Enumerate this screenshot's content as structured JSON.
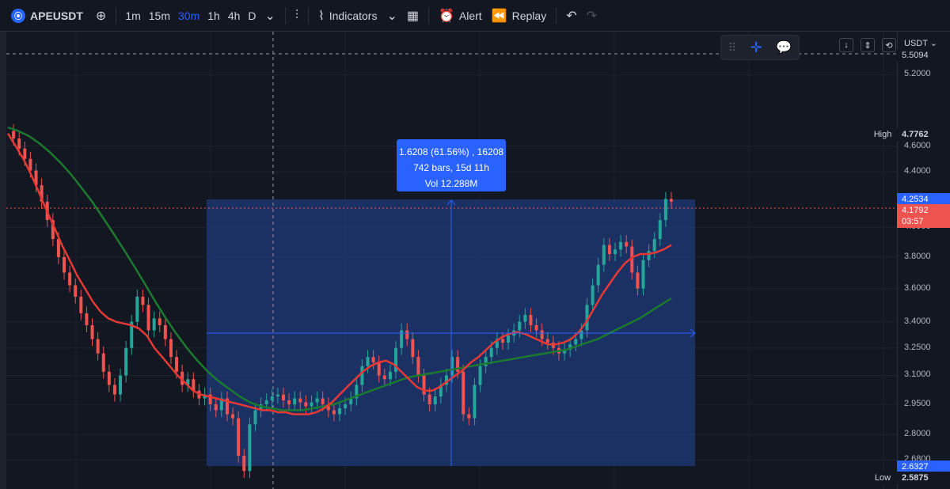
{
  "toolbar": {
    "symbol": "APEUSDT",
    "timeframes": [
      "1m",
      "15m",
      "30m",
      "1h",
      "4h",
      "D"
    ],
    "active_timeframe": "30m",
    "indicators_label": "Indicators",
    "alert_label": "Alert",
    "replay_label": "Replay"
  },
  "currency_label": "USDT",
  "high_label": "High",
  "low_label": "Low",
  "tooltip": {
    "line1": "1.6208 (61.56%) , 16208",
    "line2": "742 bars, 15d 11h",
    "line3": "Vol 12.288M"
  },
  "badges": {
    "top_value": "5.5094",
    "high_value": "4.7762",
    "range_top": "4.2534",
    "last_price": "4.1792",
    "countdown": "03:57",
    "range_bottom": "2.6327",
    "low_value": "2.5875"
  },
  "colors": {
    "background": "#131722",
    "up": "#26a69a",
    "down": "#ef5350",
    "ma_fast": "#e53935",
    "ma_slow": "#1b7a2e",
    "accent": "#2962ff",
    "range_fill": "#1f3a7a"
  },
  "chart_data": {
    "type": "line",
    "log_scale": true,
    "y_ticks": [
      5.2,
      4.6,
      4.4,
      4.0,
      3.8,
      3.6,
      3.4,
      3.25,
      3.1,
      2.95,
      2.8,
      2.68
    ],
    "y_tick_labels": [
      "5.2000",
      "4.6000",
      "4.4000",
      "4.0000",
      "3.8000",
      "3.6000",
      "3.4000",
      "3.2500",
      "3.1000",
      "2.9500",
      "2.8000",
      "2.6800"
    ],
    "ylim": [
      2.55,
      5.6
    ],
    "grid": true,
    "price": [
      4.72,
      4.66,
      4.58,
      4.5,
      4.41,
      4.3,
      4.18,
      4.05,
      3.92,
      3.8,
      3.7,
      3.62,
      3.55,
      3.45,
      3.38,
      3.3,
      3.22,
      3.12,
      3.05,
      3.0,
      3.1,
      3.25,
      3.4,
      3.55,
      3.5,
      3.35,
      3.42,
      3.38,
      3.3,
      3.2,
      3.12,
      3.05,
      3.08,
      3.02,
      2.98,
      3.0,
      2.95,
      2.92,
      2.98,
      2.9,
      2.88,
      2.7,
      2.63,
      2.85,
      2.92,
      2.95,
      2.97,
      2.99,
      3.0,
      2.97,
      2.95,
      2.98,
      2.96,
      2.94,
      2.96,
      2.98,
      2.95,
      2.92,
      2.9,
      2.93,
      2.95,
      2.98,
      3.05,
      3.15,
      3.2,
      3.17,
      3.1,
      3.08,
      3.12,
      3.25,
      3.35,
      3.3,
      3.2,
      3.1,
      3.0,
      2.95,
      2.99,
      3.05,
      3.1,
      3.2,
      3.12,
      2.9,
      2.88,
      3.05,
      3.15,
      3.2,
      3.25,
      3.3,
      3.28,
      3.32,
      3.35,
      3.4,
      3.44,
      3.38,
      3.35,
      3.3,
      3.28,
      3.25,
      3.22,
      3.24,
      3.27,
      3.3,
      3.35,
      3.5,
      3.62,
      3.75,
      3.88,
      3.82,
      3.85,
      3.9,
      3.87,
      3.7,
      3.6,
      3.78,
      3.84,
      3.92,
      4.05,
      4.2,
      4.18
    ],
    "ma_fast": [
      4.7,
      4.6,
      4.5,
      4.38,
      4.25,
      4.12,
      4.0,
      3.88,
      3.78,
      3.68,
      3.6,
      3.52,
      3.46,
      3.42,
      3.4,
      3.39,
      3.38,
      3.36,
      3.32,
      3.25,
      3.2,
      3.15,
      3.1,
      3.06,
      3.02,
      3.0,
      2.99,
      2.98,
      2.97,
      2.96,
      2.95,
      2.94,
      2.93,
      2.92,
      2.92,
      2.91,
      2.91,
      2.9,
      2.9,
      2.9,
      2.91,
      2.93,
      2.96,
      3.0,
      3.04,
      3.08,
      3.12,
      3.15,
      3.17,
      3.18,
      3.16,
      3.12,
      3.08,
      3.04,
      3.02,
      3.02,
      3.04,
      3.07,
      3.1,
      3.13,
      3.17,
      3.2,
      3.24,
      3.28,
      3.31,
      3.33,
      3.34,
      3.33,
      3.31,
      3.29,
      3.27,
      3.27,
      3.28,
      3.3,
      3.34,
      3.4,
      3.48,
      3.56,
      3.63,
      3.7,
      3.76,
      3.8,
      3.82,
      3.82,
      3.83,
      3.85,
      3.88
    ],
    "ma_slow": [
      4.75,
      4.72,
      4.68,
      4.62,
      4.55,
      4.47,
      4.38,
      4.28,
      4.18,
      4.07,
      3.96,
      3.85,
      3.74,
      3.63,
      3.52,
      3.42,
      3.33,
      3.25,
      3.18,
      3.12,
      3.07,
      3.03,
      2.99,
      2.96,
      2.94,
      2.93,
      2.92,
      2.92,
      2.92,
      2.93,
      2.94,
      2.95,
      2.97,
      2.99,
      3.01,
      3.03,
      3.05,
      3.07,
      3.09,
      3.1,
      3.11,
      3.12,
      3.13,
      3.14,
      3.15,
      3.16,
      3.17,
      3.18,
      3.19,
      3.2,
      3.21,
      3.22,
      3.23,
      3.24,
      3.26,
      3.28,
      3.3,
      3.33,
      3.36,
      3.39,
      3.42,
      3.46,
      3.5,
      3.54
    ]
  }
}
